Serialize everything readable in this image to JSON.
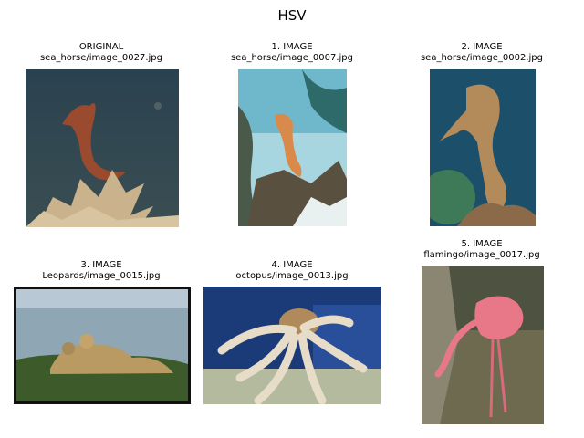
{
  "figure": {
    "title": "HSV"
  },
  "panels": [
    {
      "line1": "ORIGINAL",
      "line2": "sea_horse/image_0027.jpg",
      "subject": "seahorse-photo"
    },
    {
      "line1": "1. IMAGE",
      "line2": "sea_horse/image_0007.jpg",
      "subject": "seahorse-reef-photo"
    },
    {
      "line1": "2. IMAGE",
      "line2": "sea_horse/image_0002.jpg",
      "subject": "seahorse-closeup-photo"
    },
    {
      "line1": "3. IMAGE",
      "line2": "Leopards/image_0015.jpg",
      "subject": "cheetahs-on-grass-photo"
    },
    {
      "line1": "4. IMAGE",
      "line2": "octopus/image_0013.jpg",
      "subject": "octopus-photo"
    },
    {
      "line1": "5. IMAGE",
      "line2": "flamingo/image_0017.jpg",
      "subject": "flamingo-photo"
    }
  ]
}
